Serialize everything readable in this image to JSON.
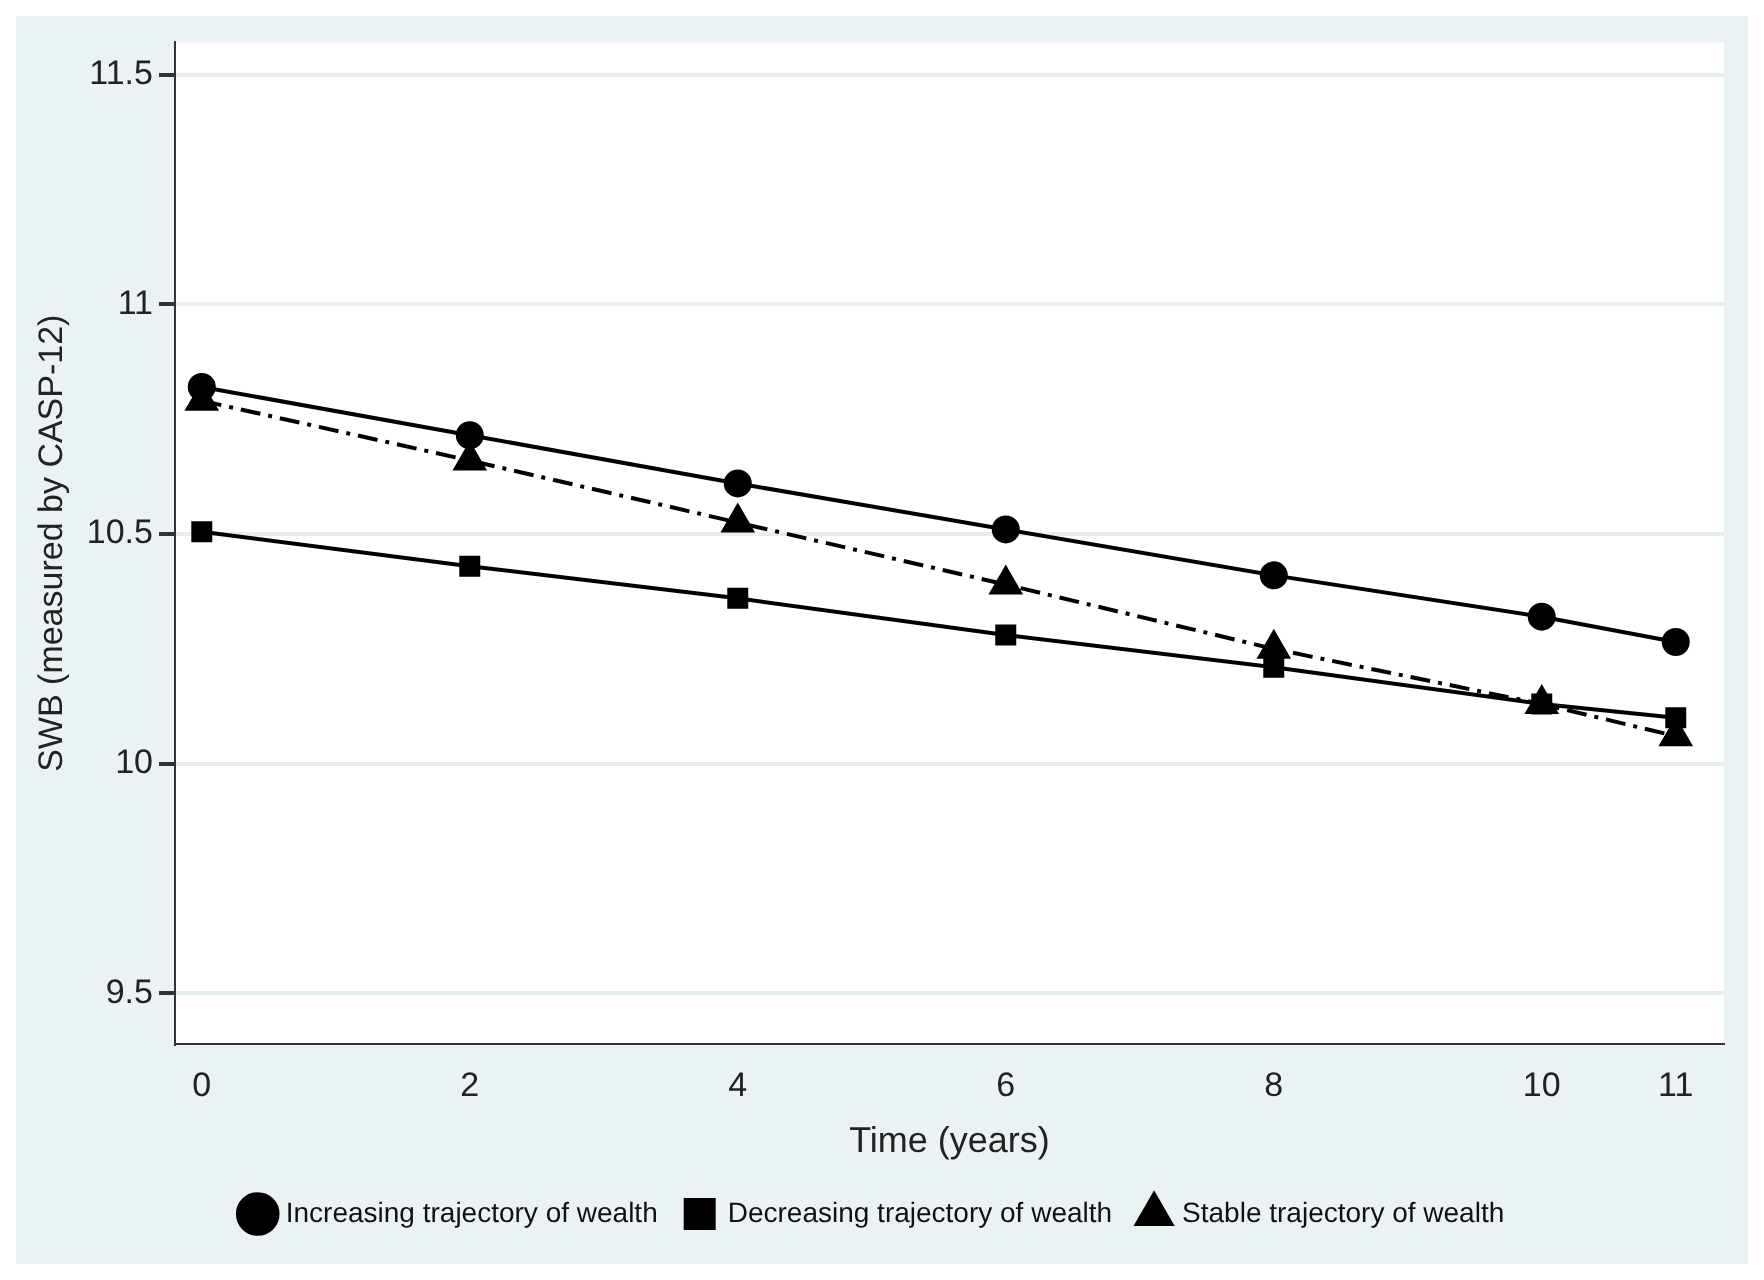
{
  "chart_data": {
    "type": "line",
    "xlabel": "Time (years)",
    "ylabel": "SWB (measured by CASP-12)",
    "x": [
      0,
      2,
      4,
      6,
      8,
      10,
      11
    ],
    "series": [
      {
        "name": "Stable trajectory of wealth",
        "color": "#000000",
        "marker": "triangle",
        "line_style": "dashed",
        "values": [
          10.79,
          10.66,
          10.525,
          10.39,
          10.25,
          10.13,
          10.06
        ]
      },
      {
        "name": "Decreasing trajectory of wealth",
        "color": "#000000",
        "marker": "square",
        "line_style": "solid",
        "values": [
          10.505,
          10.43,
          10.36,
          10.28,
          10.21,
          10.13,
          10.1
        ]
      },
      {
        "name": "Increasing trajectory of wealth",
        "color": "#000000",
        "marker": "circle",
        "line_style": "solid",
        "values": [
          10.82,
          10.715,
          10.61,
          10.51,
          10.41,
          10.32,
          10.265
        ]
      }
    ],
    "xlim": [
      -0.2,
      11.36
    ],
    "xticks": [
      0,
      2,
      4,
      6,
      8,
      10,
      11
    ],
    "ylim": [
      9.39,
      11.57
    ],
    "yticks": [
      9.5,
      10,
      10.5,
      11,
      11.5
    ],
    "grid": "y",
    "legend": "bottom"
  }
}
